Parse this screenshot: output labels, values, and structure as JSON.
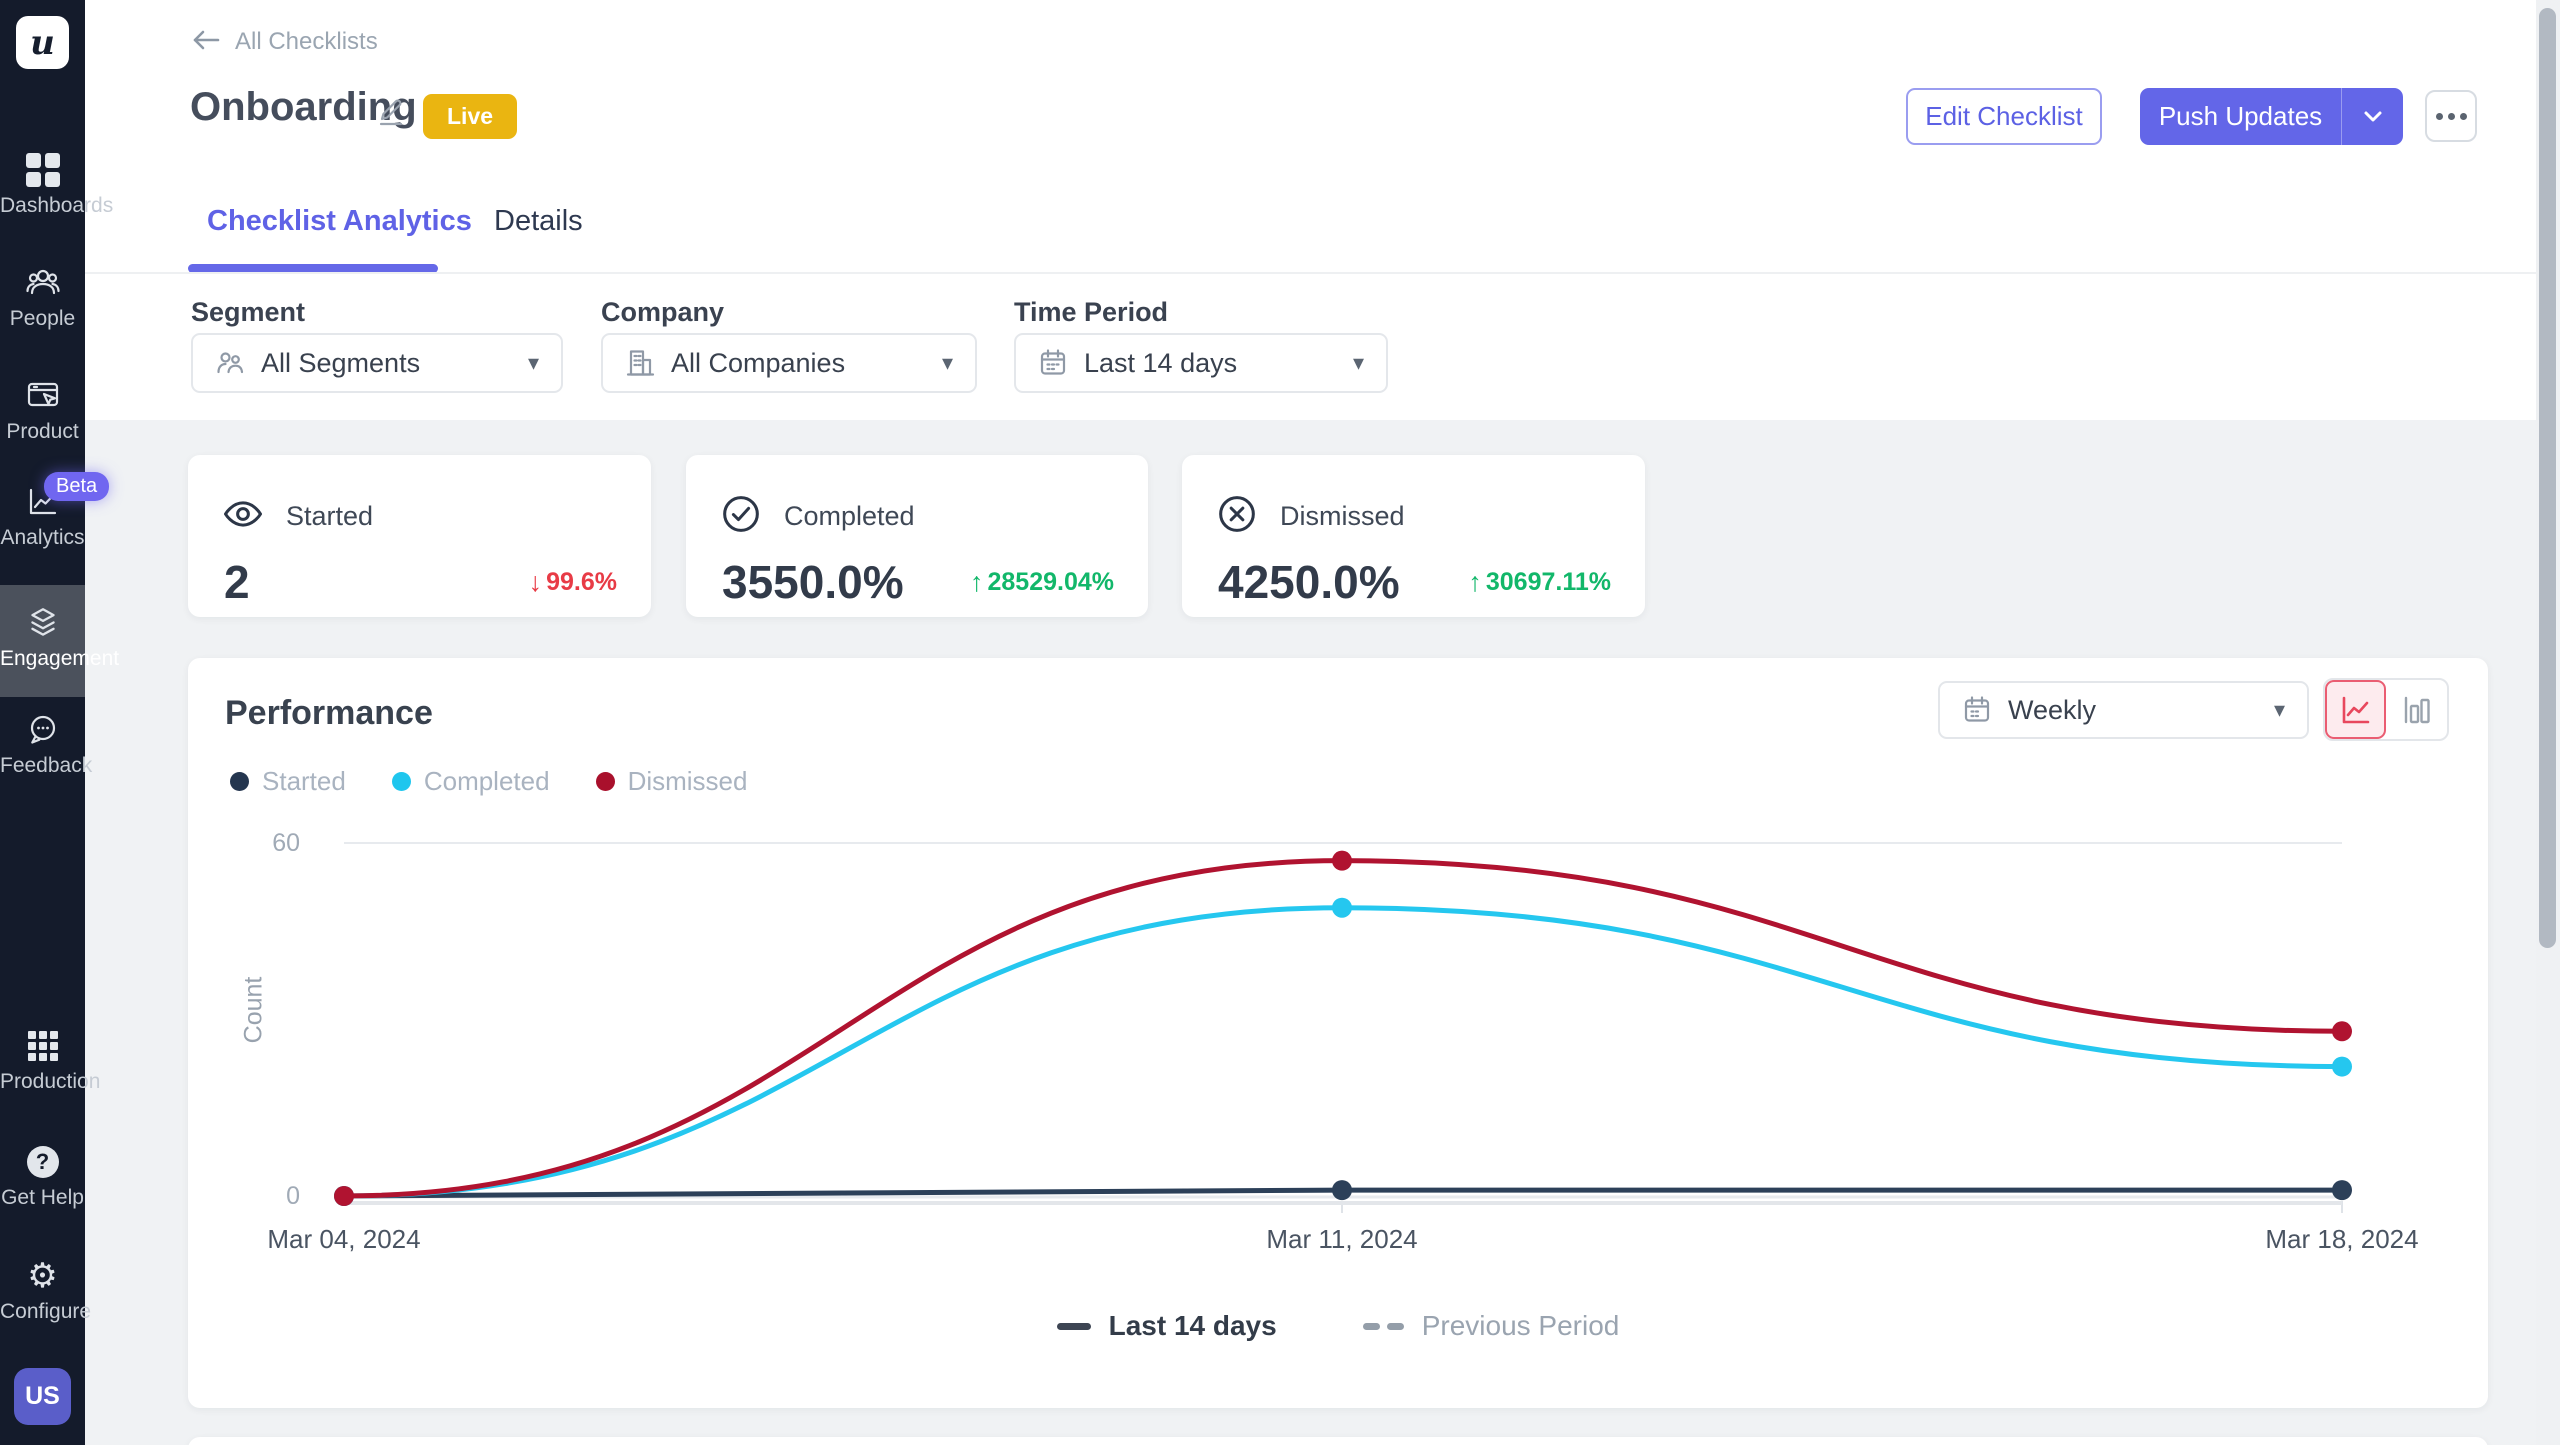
{
  "sidebar": {
    "logo_text": "u",
    "items": [
      {
        "label": "Dashboards",
        "icon": "grid-dashboard-icon"
      },
      {
        "label": "People",
        "icon": "people-icon"
      },
      {
        "label": "Product",
        "icon": "product-window-icon"
      },
      {
        "label": "Analytics",
        "icon": "analytics-chart-icon",
        "badge": "Beta"
      },
      {
        "label": "Engagement",
        "icon": "layers-icon",
        "active": true
      },
      {
        "label": "Feedback",
        "icon": "feedback-chat-icon"
      }
    ],
    "items_bottom": [
      {
        "label": "Production",
        "icon": "apps-grid-icon"
      },
      {
        "label": "Get Help",
        "icon": "question-circle-icon"
      },
      {
        "label": "Configure",
        "icon": "gear-icon"
      }
    ],
    "avatar_initials": "US"
  },
  "header": {
    "breadcrumb": "All Checklists",
    "title": "Onboarding",
    "status_badge": "Live",
    "edit_button": "Edit Checklist",
    "push_button": "Push Updates",
    "tabs": [
      {
        "label": "Checklist Analytics",
        "active": true
      },
      {
        "label": "Details",
        "active": false
      }
    ]
  },
  "filters": [
    {
      "label": "Segment",
      "value": "All Segments",
      "icon": "segment-people-icon"
    },
    {
      "label": "Company",
      "value": "All Companies",
      "icon": "company-building-icon"
    },
    {
      "label": "Time Period",
      "value": "Last 14 days",
      "icon": "calendar-icon"
    }
  ],
  "stats": [
    {
      "label": "Started",
      "icon": "eye-icon",
      "value": "2",
      "delta": "99.6%",
      "direction": "down"
    },
    {
      "label": "Completed",
      "icon": "check-circle-icon",
      "value": "3550.0%",
      "delta": "28529.04%",
      "direction": "up"
    },
    {
      "label": "Dismissed",
      "icon": "x-circle-icon",
      "value": "4250.0%",
      "delta": "30697.11%",
      "direction": "up"
    }
  ],
  "colors": {
    "accent_purple": "#6366e8",
    "live_gold": "#eab511",
    "delta_red": "#e83b46",
    "delta_green": "#12b76a",
    "active_toggle_red": "#e8475d"
  },
  "performance": {
    "title": "Performance",
    "granularity": "Weekly",
    "legend": [
      {
        "label": "Started",
        "color": "#24364f"
      },
      {
        "label": "Completed",
        "color": "#1fc6ee"
      },
      {
        "label": "Dismissed",
        "color": "#a9102c"
      }
    ],
    "footer_legend": [
      {
        "label": "Last 14 days",
        "style": "solid"
      },
      {
        "label": "Previous Period",
        "style": "dashed"
      }
    ]
  },
  "chart_data": {
    "type": "line",
    "x": [
      "Mar 04, 2024",
      "Mar 11, 2024",
      "Mar 18, 2024"
    ],
    "series": [
      {
        "name": "Started",
        "color": "#2c4059",
        "values": [
          0,
          1,
          1
        ]
      },
      {
        "name": "Completed",
        "color": "#25c7ef",
        "values": [
          0,
          49,
          22
        ]
      },
      {
        "name": "Dismissed",
        "color": "#b01330",
        "values": [
          0,
          57,
          28
        ]
      }
    ],
    "previous_period": {
      "name": "Previous Period",
      "color": "#e3e6ea",
      "values": [
        0,
        0,
        0
      ]
    },
    "title": "Performance",
    "xlabel": "",
    "ylabel": "Count",
    "yticks": [
      0,
      60
    ],
    "ylim": [
      0,
      60
    ],
    "grid": "top-gridline-and-baseline-only",
    "legend_position": "top-left"
  }
}
